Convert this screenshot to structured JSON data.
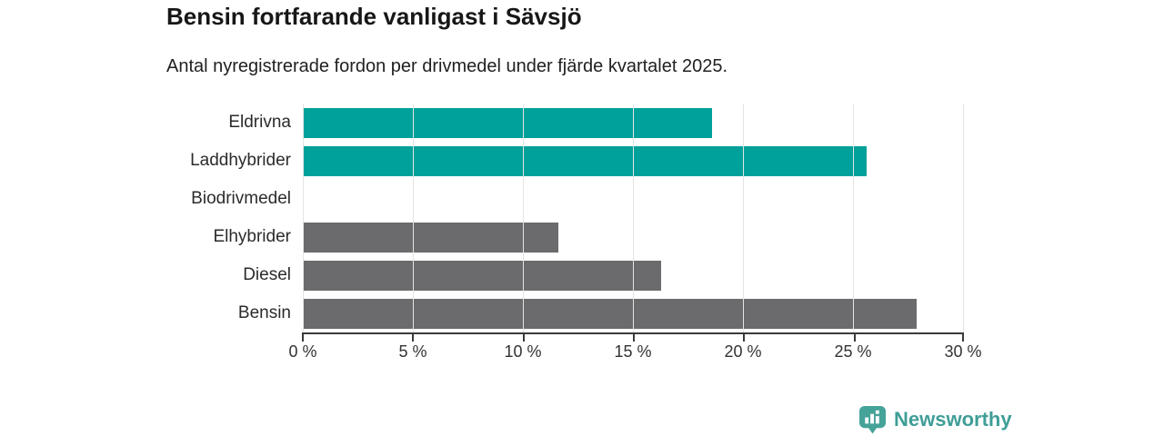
{
  "header": {
    "title": "Bensin fortfarande vanligast i Sävsjö",
    "subtitle": "Antal nyregistrerade fordon per drivmedel under fjärde kvartalet 2025."
  },
  "chart_data": {
    "type": "bar",
    "orientation": "horizontal",
    "title": "Bensin fortfarande vanligast i Sävsjö",
    "subtitle": "Antal nyregistrerade fordon per drivmedel under fjärde kvartalet 2025.",
    "categories": [
      "Eldrivna",
      "Laddhybrider",
      "Biodrivmedel",
      "Elhybrider",
      "Diesel",
      "Bensin"
    ],
    "values": [
      18.6,
      25.6,
      0,
      11.6,
      16.3,
      27.9
    ],
    "unit": "%",
    "bar_colors": [
      "#00a19a",
      "#00a19a",
      "#6b6b6e",
      "#6b6b6e",
      "#6b6b6e",
      "#6b6b6e"
    ],
    "accent_color": "#00a19a",
    "neutral_color": "#6b6b6e",
    "xlim": [
      0,
      30
    ],
    "x_ticks": [
      0,
      5,
      10,
      15,
      20,
      25,
      30
    ],
    "x_tick_labels": [
      "0 %",
      "5 %",
      "10 %",
      "15 %",
      "20 %",
      "25 %",
      "30 %"
    ],
    "grid": "vertical",
    "gridline_color": "#e4e4e4",
    "axis_color": "#3a3a3a",
    "legend": "none"
  },
  "branding": {
    "logo_text": "Newsworthy",
    "logo_text_color": "#3f9e97",
    "logo_icon_color": "#46a39a",
    "logo_icon": "bar-chart-pin-icon"
  }
}
